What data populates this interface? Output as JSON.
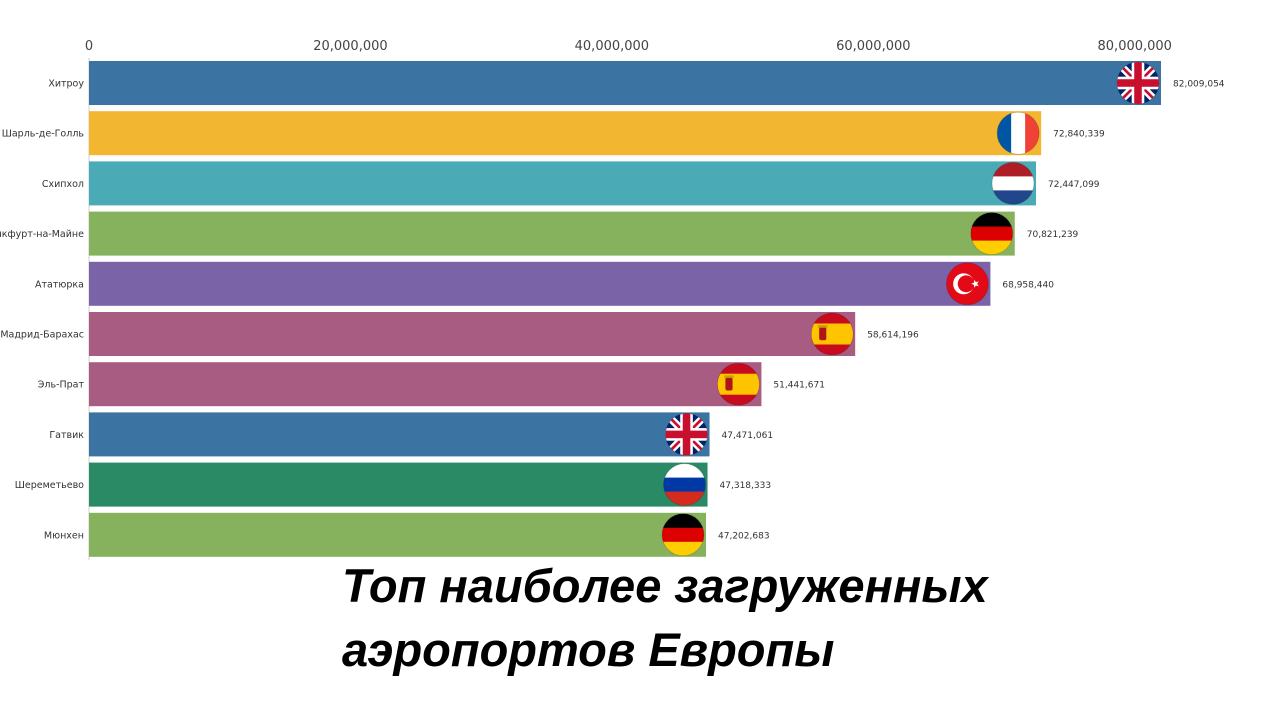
{
  "chart_data": {
    "type": "bar",
    "orientation": "horizontal",
    "title": "Топ наиболее загруженных\nаэропортов Европы",
    "xlim": [
      0,
      82009054
    ],
    "x_ticks": [
      0,
      20000000,
      40000000,
      60000000,
      80000000
    ],
    "x_tick_labels": [
      "0",
      "20,000,000",
      "40,000,000",
      "60,000,000",
      "80,000,000"
    ],
    "x_axis_position": "top",
    "grid": false,
    "categories": [
      "Хитроу",
      "Шарль-де-Голль",
      "Схипхол",
      "Франкфурт-на-Майне",
      "Ататюрка",
      "Мадрид-Барахас",
      "Эль-Прат",
      "Гатвик",
      "Шереметьево",
      "Мюнхен"
    ],
    "values": [
      82009054,
      72840339,
      72447099,
      70821239,
      68958440,
      58614196,
      51441671,
      47471061,
      47318333,
      47202683
    ],
    "value_labels": [
      "82,009,054",
      "72,840,339",
      "72,447,099",
      "70,821,239",
      "68,958,440",
      "58,614,196",
      "51,441,671",
      "47,471,061",
      "47,318,333",
      "47,202,683"
    ],
    "colors": [
      "#3b74a3",
      "#f2b630",
      "#4aaab5",
      "#86b25e",
      "#7a63a6",
      "#a85c82",
      "#a85c82",
      "#3b74a3",
      "#2a8a66",
      "#86b25e"
    ],
    "flags": [
      "uk-flag-icon",
      "france-flag-icon",
      "netherlands-flag-icon",
      "germany-flag-icon",
      "turkey-flag-icon",
      "spain-flag-icon",
      "spain-flag-icon",
      "uk-flag-icon",
      "russia-flag-icon",
      "germany-flag-icon"
    ]
  }
}
